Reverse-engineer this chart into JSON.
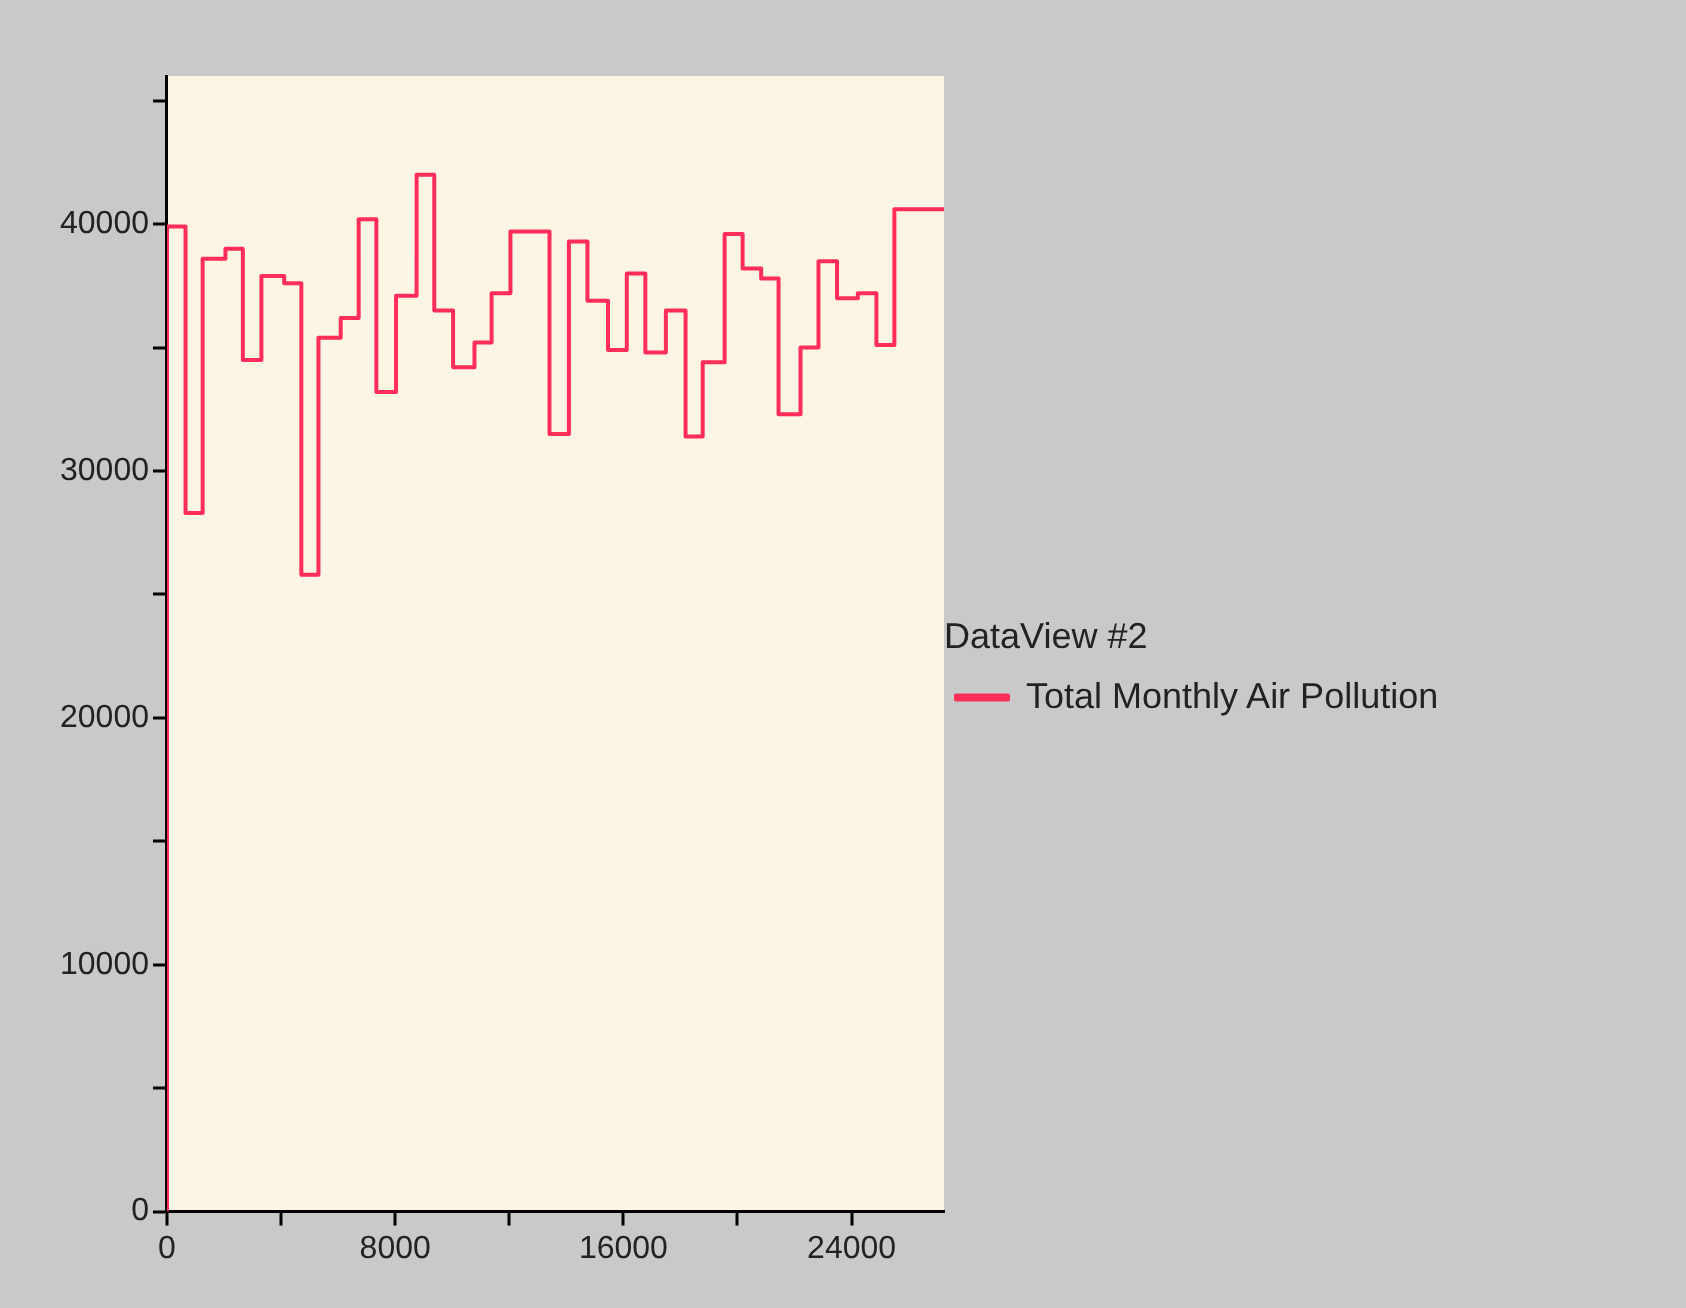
{
  "chart_data": {
    "type": "step",
    "legend_title": "DataView #2",
    "legend": "right",
    "x": [
      0,
      650,
      1250,
      2050,
      2660,
      3310,
      4110,
      4710,
      5310,
      6090,
      6720,
      7340,
      8030,
      8750,
      9370,
      10030,
      10780,
      11380,
      12040,
      13410,
      14090,
      14740,
      15460,
      16120,
      16770,
      17490,
      18180,
      18780,
      19550,
      20180,
      20830,
      21440,
      22210,
      22840,
      23490,
      24220,
      24870,
      25500,
      26270,
      27240
    ],
    "series": [
      {
        "name": "Total Monthly Air Pollution",
        "color": "#ff2d5a",
        "values": [
          0,
          39900,
          28300,
          38600,
          39000,
          34500,
          37900,
          37600,
          25800,
          35400,
          36200,
          40200,
          33200,
          37100,
          42000,
          36500,
          34200,
          35200,
          37200,
          39700,
          31500,
          39300,
          36900,
          34900,
          38000,
          34800,
          36500,
          31400,
          34400,
          39600,
          38200,
          37800,
          32300,
          35000,
          38500,
          37000,
          37200,
          35100,
          40600,
          40600
        ]
      }
    ],
    "xlim": [
      0,
      27240
    ],
    "xticks": [
      0,
      {
        "value": 4000,
        "label": null
      },
      8000,
      {
        "value": 12000,
        "label": null
      },
      16000,
      {
        "value": 20000,
        "label": null
      },
      24000
    ],
    "ylim": [
      0,
      46000
    ],
    "yticks": [
      0,
      {
        "value": 5000,
        "label": null
      },
      10000,
      {
        "value": 15000,
        "label": null
      },
      20000,
      {
        "value": 25000,
        "label": null
      },
      30000,
      {
        "value": 35000,
        "label": null
      },
      40000,
      {
        "value": 45000,
        "label": null
      }
    ]
  }
}
